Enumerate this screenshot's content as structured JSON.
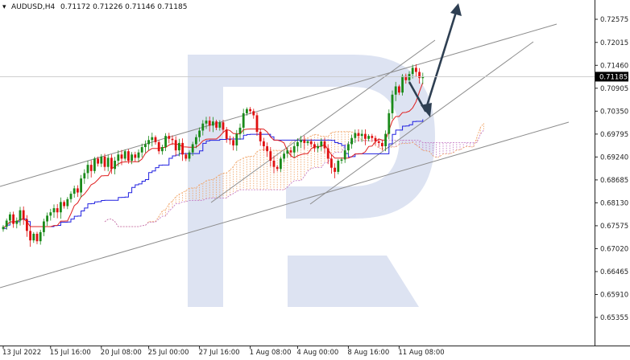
{
  "header": {
    "symbol": "AUDUSD,H4",
    "ohlc": "0.71172 0.71226 0.71146 0.71185"
  },
  "colors": {
    "bull": "#1a8a1a",
    "bear": "#e01010",
    "tenkan": "#e02020",
    "kijun": "#2020e0",
    "kumo_a": "#f0a060",
    "kumo_b": "#c070c0",
    "channel": "#8c8c8c",
    "arrow": "#2e3f52",
    "watermark": "#dde3f2",
    "price_tag": "#000000"
  },
  "chart_data": {
    "type": "candlestick",
    "instrument": "AUDUSD",
    "timeframe": "H4",
    "current_price": 0.71185,
    "current_price_label": "0.71185",
    "ylim": [
      0.653,
      0.729
    ],
    "y_ticks": [
      {
        "value": 0.72575,
        "label": "0.72575"
      },
      {
        "value": 0.72015,
        "label": "0.72015"
      },
      {
        "value": 0.7146,
        "label": "0.71460"
      },
      {
        "value": 0.70905,
        "label": "0.70905"
      },
      {
        "value": 0.7035,
        "label": "0.70350"
      },
      {
        "value": 0.69795,
        "label": "0.69795"
      },
      {
        "value": 0.6924,
        "label": "0.69240"
      },
      {
        "value": 0.68685,
        "label": "0.68685"
      },
      {
        "value": 0.6813,
        "label": "0.68130"
      },
      {
        "value": 0.67575,
        "label": "0.67575"
      },
      {
        "value": 0.6702,
        "label": "0.67020"
      },
      {
        "value": 0.66465,
        "label": "0.66465"
      },
      {
        "value": 0.6591,
        "label": "0.65910"
      },
      {
        "value": 0.65355,
        "label": "0.65355"
      }
    ],
    "x_ticks": [
      {
        "bar": 0,
        "label": "13 Jul 2022"
      },
      {
        "bar": 14,
        "label": "15 Jul 16:00"
      },
      {
        "bar": 29,
        "label": "20 Jul 08:00"
      },
      {
        "bar": 43,
        "label": "25 Jul 00:00"
      },
      {
        "bar": 58,
        "label": "27 Jul 16:00"
      },
      {
        "bar": 73,
        "label": "1 Aug 08:00"
      },
      {
        "bar": 87,
        "label": "4 Aug 00:00"
      },
      {
        "bar": 102,
        "label": "8 Aug 16:00"
      },
      {
        "bar": 117,
        "label": "11 Aug 08:00"
      }
    ],
    "close": [
      0.6755,
      0.677,
      0.6785,
      0.6762,
      0.677,
      0.6795,
      0.6773,
      0.6745,
      0.6722,
      0.6738,
      0.672,
      0.6742,
      0.6768,
      0.6782,
      0.679,
      0.68,
      0.679,
      0.6815,
      0.6805,
      0.6822,
      0.6835,
      0.6848,
      0.6838,
      0.6872,
      0.6885,
      0.6905,
      0.689,
      0.692,
      0.6908,
      0.6925,
      0.69,
      0.6922,
      0.6895,
      0.6915,
      0.693,
      0.692,
      0.6938,
      0.6915,
      0.693,
      0.6922,
      0.6935,
      0.6948,
      0.6955,
      0.6965,
      0.6972,
      0.696,
      0.6938,
      0.6948,
      0.6975,
      0.6968,
      0.6965,
      0.694,
      0.6958,
      0.693,
      0.692,
      0.6935,
      0.6955,
      0.6972,
      0.6988,
      0.7005,
      0.7012,
      0.7,
      0.701,
      0.6995,
      0.7008,
      0.699,
      0.6968,
      0.6965,
      0.6952,
      0.698,
      0.6995,
      0.703,
      0.704,
      0.7035,
      0.7025,
      0.6985,
      0.6962,
      0.695,
      0.6938,
      0.6915,
      0.69,
      0.6895,
      0.692,
      0.6932,
      0.694,
      0.6935,
      0.695,
      0.696,
      0.6965,
      0.6958,
      0.6962,
      0.6955,
      0.6945,
      0.695,
      0.6962,
      0.6945,
      0.692,
      0.6898,
      0.6888,
      0.6915,
      0.6918,
      0.694,
      0.6955,
      0.697,
      0.6982,
      0.6975,
      0.698,
      0.6968,
      0.6975,
      0.697,
      0.6962,
      0.6958,
      0.695,
      0.698,
      0.703,
      0.7075,
      0.7095,
      0.708,
      0.712,
      0.711,
      0.7125,
      0.714,
      0.713,
      0.7115,
      0.7118
    ]
  }
}
